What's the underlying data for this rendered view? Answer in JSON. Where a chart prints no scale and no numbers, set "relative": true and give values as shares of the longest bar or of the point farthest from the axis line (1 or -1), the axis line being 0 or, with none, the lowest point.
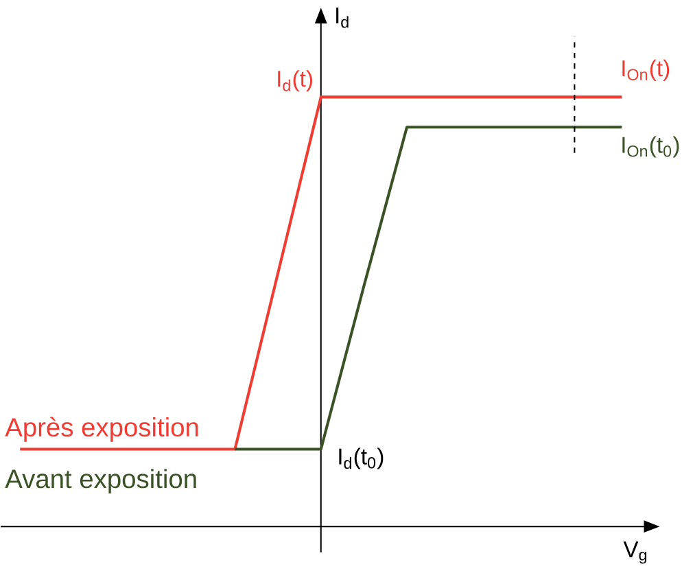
{
  "chart_data": {
    "type": "line",
    "relative": true,
    "xlabel": "V$_{g}$",
    "ylabel": "I$_{d}$",
    "categories": [
      null,
      null,
      null,
      null,
      null,
      null,
      null,
      null,
      null,
      null,
      null,
      null,
      null,
      null,
      null
    ],
    "series": [
      {
        "name": "Après exposition",
        "color": "#f03c32",
        "values": [
          0.18,
          0.18,
          0.18,
          0.18,
          0.18,
          0.18,
          0.59,
          1,
          1,
          1,
          1,
          1,
          1,
          1,
          1
        ]
      },
      {
        "name": "Avant exposition",
        "color": "#3a5226",
        "values": [
          null,
          null,
          null,
          null,
          null,
          0.18,
          0.18,
          0.18,
          0.56,
          0.93,
          0.93,
          0.93,
          0.93,
          0.93,
          0.93
        ]
      }
    ],
    "annotations": [
      "I$_{d}$(t)",
      "I$_{On}$(t)",
      "I$_{On}$(t$_{0}$)",
      "I$_{d}$(t$_{0}$)"
    ]
  }
}
